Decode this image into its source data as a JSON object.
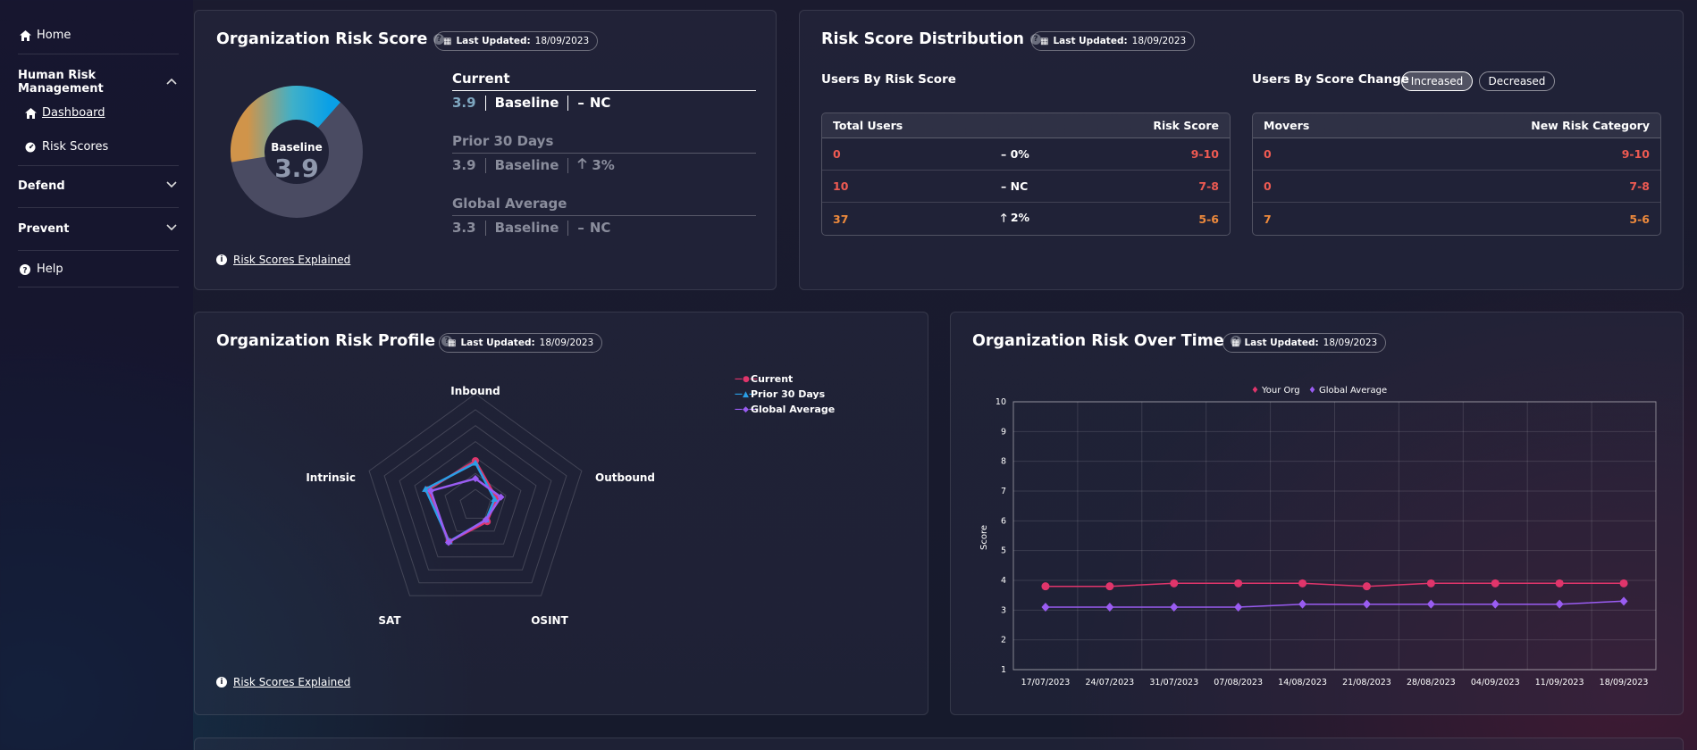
{
  "sidebar": {
    "home": "Home",
    "hrm": "Human Risk Management",
    "dashboard": "Dashboard",
    "risk_scores": "Risk Scores",
    "defend": "Defend",
    "prevent": "Prevent",
    "help": "Help"
  },
  "updated": {
    "label": "Last Updated:",
    "date": "18/09/2023"
  },
  "org_score": {
    "title": "Organization Risk Score",
    "donut_label": "Baseline",
    "donut_value": "3.9",
    "donut_fraction": 0.39,
    "current": {
      "label": "Current",
      "value": "3.9",
      "baseline": "Baseline",
      "change": "NC",
      "dash": "–"
    },
    "prior": {
      "label": "Prior 30 Days",
      "value": "3.9",
      "baseline": "Baseline",
      "change": "3%",
      "arrow": "🡑"
    },
    "global": {
      "label": "Global Average",
      "value": "3.3",
      "baseline": "Baseline",
      "change": "NC",
      "dash": "–"
    },
    "link": "Risk Scores Explained"
  },
  "distribution": {
    "title": "Risk Score Distribution",
    "by_score": {
      "heading": "Users By Risk Score",
      "col1": "Total Users",
      "col2": "Risk Score",
      "rows": [
        {
          "users": "0",
          "change": "– 0%",
          "range": "9-10"
        },
        {
          "users": "10",
          "change": "– NC",
          "range": "7-8"
        },
        {
          "users": "37",
          "change": "🡑 2%",
          "range": "5-6"
        }
      ]
    },
    "by_change": {
      "heading": "Users By Score Change",
      "increased": "Increased",
      "decreased": "Decreased",
      "col1": "Movers",
      "col2": "New Risk Category",
      "rows": [
        {
          "movers": "0",
          "cat": "9-10"
        },
        {
          "movers": "0",
          "cat": "7-8"
        },
        {
          "movers": "7",
          "cat": "5-6"
        }
      ]
    }
  },
  "profile": {
    "title": "Organization Risk Profile",
    "link": "Risk Scores Explained",
    "axes": [
      "Inbound",
      "Outbound",
      "OSINT",
      "SAT",
      "Intrinsic"
    ],
    "legend": [
      "Current",
      "Prior 30 Days",
      "Global Average"
    ]
  },
  "chart_data": [
    {
      "type": "radar",
      "title": "Organization Risk Profile",
      "axes": [
        "Inbound",
        "Outbound",
        "OSINT",
        "SAT",
        "Intrinsic"
      ],
      "range": [
        0,
        10
      ],
      "series": [
        {
          "name": "Current",
          "color": "#e0356b",
          "values": [
            4.0,
            2.0,
            1.8,
            4.0,
            4.5
          ]
        },
        {
          "name": "Prior 30 Days",
          "color": "#2a9ee6",
          "values": [
            3.8,
            1.8,
            1.6,
            4.0,
            4.7
          ]
        },
        {
          "name": "Global Average",
          "color": "#9a5cf2",
          "values": [
            2.4,
            2.4,
            1.6,
            4.1,
            4.2
          ]
        }
      ]
    },
    {
      "type": "line",
      "title": "Organization Risk Over Time",
      "ylabel": "Score",
      "ylim": [
        1,
        10
      ],
      "x": [
        "17/07/2023",
        "24/07/2023",
        "31/07/2023",
        "07/08/2023",
        "14/08/2023",
        "21/08/2023",
        "28/08/2023",
        "04/09/2023",
        "11/09/2023",
        "18/09/2023"
      ],
      "series": [
        {
          "name": "Your Org",
          "color": "#e0356b",
          "values": [
            3.8,
            3.8,
            3.9,
            3.9,
            3.9,
            3.8,
            3.9,
            3.9,
            3.9,
            3.9
          ]
        },
        {
          "name": "Global Average",
          "color": "#9a5cf2",
          "values": [
            3.1,
            3.1,
            3.1,
            3.1,
            3.2,
            3.2,
            3.2,
            3.2,
            3.2,
            3.3
          ]
        }
      ],
      "yticks": [
        "1",
        "2",
        "3",
        "4",
        "5",
        "6",
        "7",
        "8",
        "9",
        "10"
      ]
    }
  ],
  "overtime": {
    "title": "Organization Risk Over Time",
    "legend1": "Your Org",
    "legend2": "Global Average",
    "ylabel": "Score"
  },
  "colors": {
    "accent_red": "#ee5a52",
    "accent_orange": "#ee8a3c",
    "current": "#e0356b",
    "prior": "#2a9ee6",
    "global": "#9a5cf2"
  }
}
